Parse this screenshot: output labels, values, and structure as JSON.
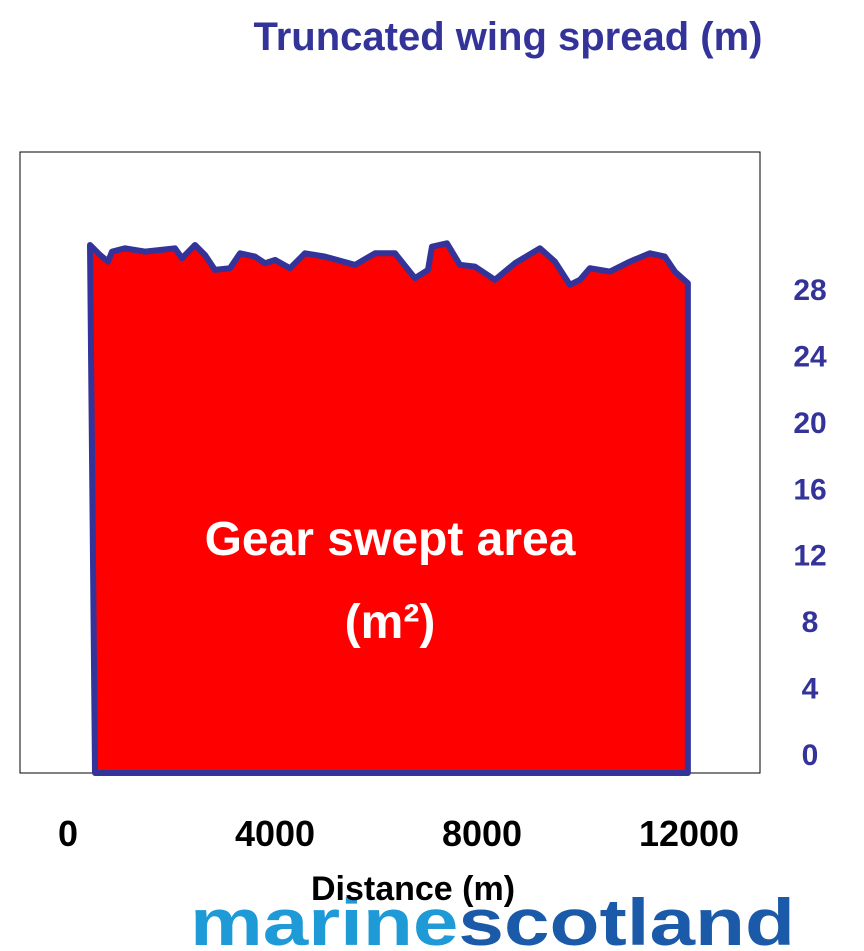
{
  "chart_data": {
    "type": "area",
    "title": "Truncated wing spread (m)",
    "x_label": "Distance (m)",
    "annotation": [
      "Gear swept area",
      "(m²)"
    ],
    "x": [
      425,
      618,
      773,
      850,
      1101,
      1488,
      2068,
      2203,
      2454,
      2647,
      2840,
      3130,
      3324,
      3614,
      3807,
      4000,
      4290,
      4580,
      4966,
      5546,
      5932,
      6319,
      6705,
      6956,
      7033,
      7323,
      7574,
      7864,
      8250,
      8636,
      9119,
      9409,
      9699,
      9892,
      10085,
      10472,
      10858,
      11244,
      11534,
      11727,
      11978
    ],
    "values": [
      31.8,
      31.2,
      30.8,
      31.4,
      31.6,
      31.4,
      31.6,
      31.0,
      31.8,
      31.2,
      30.3,
      30.4,
      31.3,
      31.1,
      30.7,
      30.9,
      30.4,
      31.3,
      31.1,
      30.6,
      31.3,
      31.3,
      29.8,
      30.3,
      31.7,
      31.9,
      30.6,
      30.5,
      29.7,
      30.7,
      31.6,
      30.8,
      29.4,
      29.7,
      30.4,
      30.2,
      30.8,
      31.3,
      31.1,
      30.2,
      29.5
    ],
    "color": "#ff0000",
    "line_color": "#333399",
    "xlim": [
      -928,
      13372
    ],
    "ylim": [
      0,
      37.4
    ],
    "xticks": [
      0,
      4000,
      8000,
      12000
    ],
    "yticks": [
      0,
      4,
      8,
      12,
      16,
      20,
      24,
      28
    ],
    "y_axis_side": "right",
    "grid": false
  },
  "logo": [
    "marine",
    "scotland"
  ]
}
